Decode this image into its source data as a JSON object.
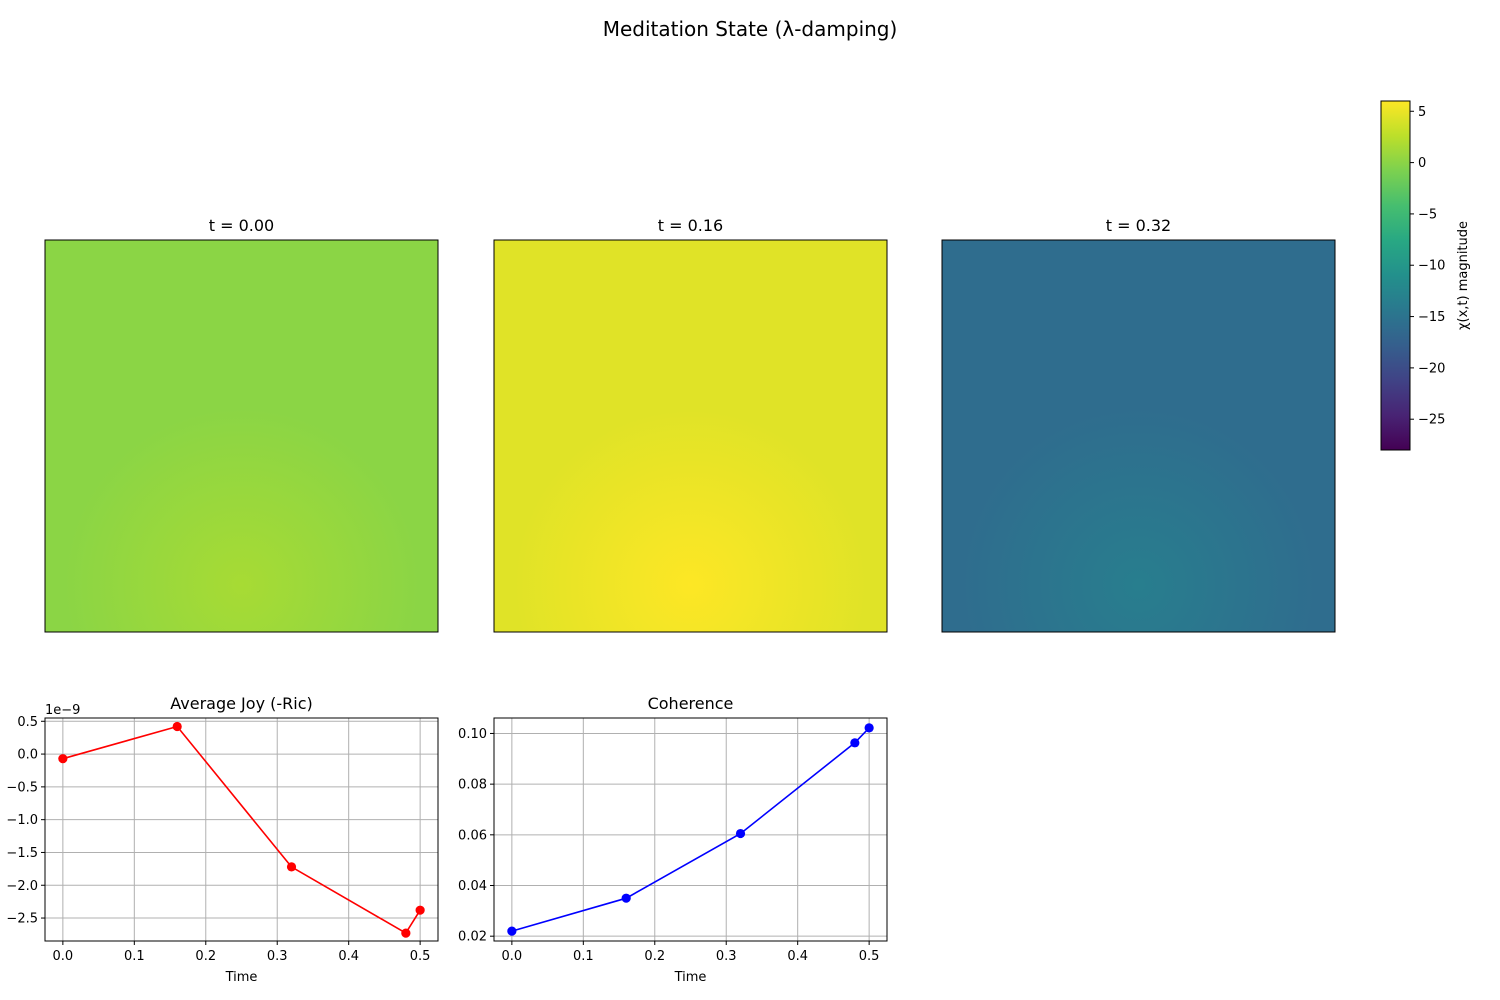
{
  "figure": {
    "title": "Meditation State (λ-damping)"
  },
  "chart_data": [
    {
      "type": "heatmap",
      "title": "t = 0.00",
      "dominant_value": 0,
      "peak_value": 1.5,
      "peak_location": "bottom-center",
      "axes_visible": false
    },
    {
      "type": "heatmap",
      "title": "t = 0.16",
      "dominant_value": 4.5,
      "peak_value": 6,
      "peak_location": "bottom-center",
      "axes_visible": false
    },
    {
      "type": "heatmap",
      "title": "t = 0.32",
      "dominant_value": -16,
      "peak_value": -13.5,
      "peak_location": "bottom-center",
      "axes_visible": false
    },
    {
      "type": "colorbar",
      "label": "χ(x,t) magnitude",
      "colormap": "viridis",
      "range": [
        -28,
        6
      ],
      "ticks": [
        5,
        0,
        -5,
        -10,
        -15,
        -20,
        -25
      ],
      "tick_labels": [
        "5",
        "0",
        "−5",
        "−10",
        "−15",
        "−20",
        "−25"
      ]
    },
    {
      "type": "line",
      "title": "Average Joy (-Ric)",
      "xlabel": "Time",
      "ylabel": "",
      "offset_label": "1e−9",
      "x": [
        0.0,
        0.16,
        0.32,
        0.48,
        0.5
      ],
      "series": [
        {
          "values": [
            -0.07,
            0.42,
            -1.72,
            -2.73,
            -2.38
          ],
          "color": "#ff0000"
        }
      ],
      "xlim": [
        -0.025,
        0.525
      ],
      "ylim": [
        -2.85,
        0.55
      ],
      "xticks": [
        0.0,
        0.1,
        0.2,
        0.3,
        0.4,
        0.5
      ],
      "xtick_labels": [
        "0.0",
        "0.1",
        "0.2",
        "0.3",
        "0.4",
        "0.5"
      ],
      "yticks": [
        0.5,
        0.0,
        -0.5,
        -1.0,
        -1.5,
        -2.0,
        -2.5
      ],
      "ytick_labels": [
        "0.5",
        "0.0",
        "−0.5",
        "−1.0",
        "−1.5",
        "−2.0",
        "−2.5"
      ],
      "grid": true
    },
    {
      "type": "line",
      "title": "Coherence",
      "xlabel": "Time",
      "ylabel": "",
      "x": [
        0.0,
        0.16,
        0.32,
        0.48,
        0.5
      ],
      "series": [
        {
          "values": [
            0.022,
            0.035,
            0.0605,
            0.0963,
            0.1022
          ],
          "color": "#0000ff"
        }
      ],
      "xlim": [
        -0.025,
        0.525
      ],
      "ylim": [
        0.0181,
        0.1061
      ],
      "xticks": [
        0.0,
        0.1,
        0.2,
        0.3,
        0.4,
        0.5
      ],
      "xtick_labels": [
        "0.0",
        "0.1",
        "0.2",
        "0.3",
        "0.4",
        "0.5"
      ],
      "yticks": [
        0.02,
        0.04,
        0.06,
        0.08,
        0.1
      ],
      "ytick_labels": [
        "0.02",
        "0.04",
        "0.06",
        "0.08",
        "0.10"
      ],
      "grid": true
    }
  ]
}
